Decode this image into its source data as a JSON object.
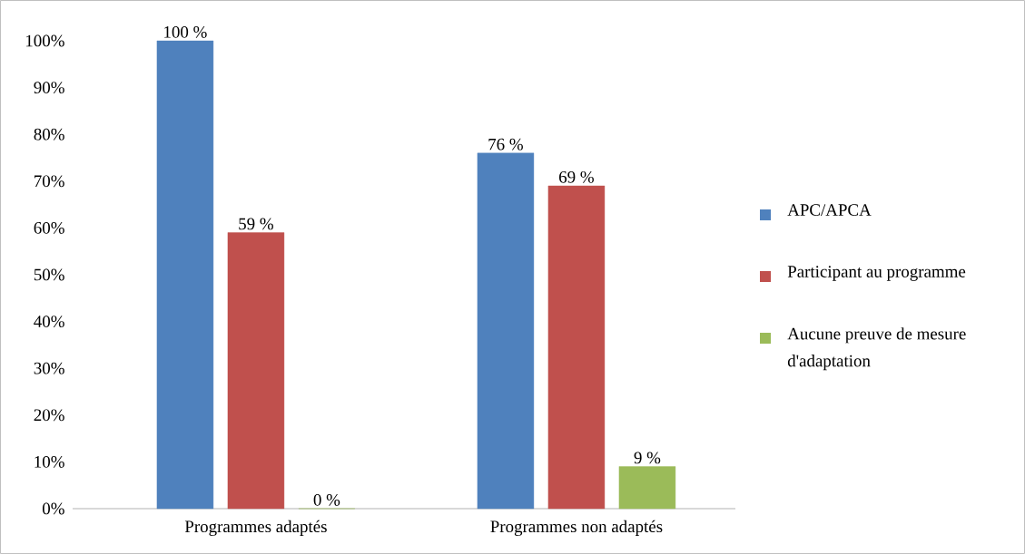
{
  "chart_data": {
    "type": "bar",
    "categories": [
      "Programmes adaptés",
      "Programmes non adaptés"
    ],
    "series": [
      {
        "name": "APC/APCA",
        "color": "#4f81bd",
        "values": [
          100,
          76
        ],
        "value_labels": [
          "100 %",
          "76 %"
        ]
      },
      {
        "name": "Participant au programme",
        "color": "#c0504d",
        "values": [
          59,
          69
        ],
        "value_labels": [
          "59 %",
          "69 %"
        ]
      },
      {
        "name": "Aucune preuve de mesure d'adaptation",
        "color": "#9bbb59",
        "values": [
          0,
          9
        ],
        "value_labels": [
          "0 %",
          "9 %"
        ]
      }
    ],
    "ylim": [
      0,
      100
    ],
    "yticks": [
      {
        "value": 0,
        "label": "0%"
      },
      {
        "value": 10,
        "label": "10%"
      },
      {
        "value": 20,
        "label": "20%"
      },
      {
        "value": 30,
        "label": "30%"
      },
      {
        "value": 40,
        "label": "40%"
      },
      {
        "value": 50,
        "label": "50%"
      },
      {
        "value": 60,
        "label": "60%"
      },
      {
        "value": 70,
        "label": "70%"
      },
      {
        "value": 80,
        "label": "80%"
      },
      {
        "value": 90,
        "label": "90%"
      },
      {
        "value": 100,
        "label": "100%"
      }
    ],
    "grid": false,
    "legend": "right"
  }
}
